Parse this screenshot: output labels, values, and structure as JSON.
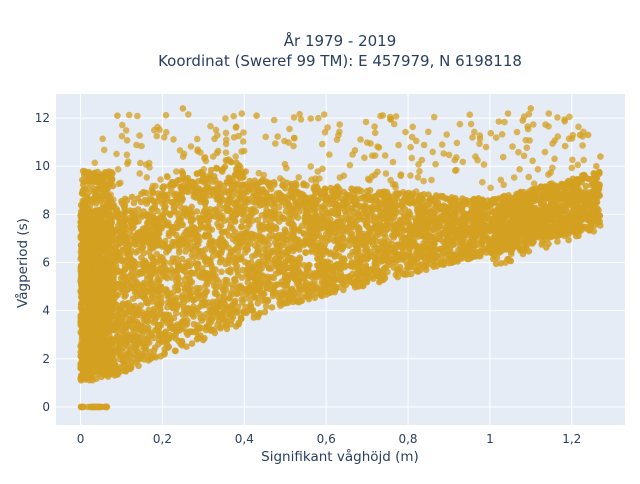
{
  "chart_data": {
    "type": "scatter",
    "title_line1": "År 1979 - 2019",
    "title_line2": "Koordinat (Sweref 99 TM): E 457979, N 6198118",
    "xlabel": "Signifikant våghöjd (m)",
    "ylabel": "Vågperiod (s)",
    "xlim": [
      -0.06,
      1.33
    ],
    "ylim": [
      -0.75,
      13.0
    ],
    "x_ticks": [
      0,
      0.2,
      0.4,
      0.6,
      0.8,
      1,
      1.2
    ],
    "x_tick_labels": [
      "0",
      "0,2",
      "0,4",
      "0,6",
      "0,8",
      "1",
      "1,2"
    ],
    "y_ticks": [
      0,
      2,
      4,
      6,
      8,
      10,
      12
    ],
    "y_tick_labels": [
      "0",
      "2",
      "4",
      "6",
      "8",
      "10",
      "12"
    ],
    "grid": true,
    "legend": "none",
    "marker_color": "#d4a021",
    "point_cloud": {
      "description_points": [
        {
          "x": 0.0,
          "y": 0.0
        },
        {
          "x": 0.065,
          "y": 0.0
        },
        {
          "x": 0.0,
          "y": 1.7
        },
        {
          "x": 0.0,
          "y": 10.5
        },
        {
          "x": 0.05,
          "y": 1.1
        },
        {
          "x": 0.25,
          "y": 12.3
        },
        {
          "x": 0.35,
          "y": 2.6
        },
        {
          "x": 0.6,
          "y": 4.2
        },
        {
          "x": 0.8,
          "y": 5.3
        },
        {
          "x": 1.0,
          "y": 6.3
        },
        {
          "x": 1.1,
          "y": 12.4
        },
        {
          "x": 1.2,
          "y": 7.2
        },
        {
          "x": 1.27,
          "y": 10.3
        }
      ]
    }
  },
  "colors": {
    "plot_bg": "#e5ecf6",
    "grid": "#ffffff",
    "text": "#2a3f5f",
    "marker": "#d4a021"
  }
}
